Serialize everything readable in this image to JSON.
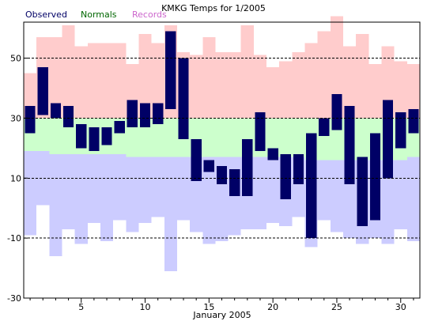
{
  "chart_data": {
    "type": "bar",
    "title": "KMKG Temps for 1/2005",
    "xlabel": "January 2005",
    "ylabel": "",
    "ylim": [
      -30,
      62
    ],
    "xlim": [
      0.5,
      31.5
    ],
    "y_ticks": [
      50,
      30,
      10,
      -10,
      -30
    ],
    "x_ticks": [
      5,
      10,
      15,
      20,
      25,
      30
    ],
    "gridlines": [
      50,
      30,
      10,
      -10
    ],
    "grid": "dashed horizontal",
    "legend": [
      {
        "name": "Observed",
        "color": "#000066"
      },
      {
        "name": "Normals",
        "color": "#006600"
      },
      {
        "name": "Records",
        "color": "#cc66cc"
      }
    ],
    "legend_position": "top-left",
    "colors": {
      "observed": "#000066",
      "normals": "#ccffcc",
      "record_high_band": "#ffcccc",
      "record_low_band": "#ccccff"
    },
    "days": [
      1,
      2,
      3,
      4,
      5,
      6,
      7,
      8,
      9,
      10,
      11,
      12,
      13,
      14,
      15,
      16,
      17,
      18,
      19,
      20,
      21,
      22,
      23,
      24,
      25,
      26,
      27,
      28,
      29,
      30,
      31
    ],
    "record_high": [
      45,
      57,
      57,
      61,
      54,
      55,
      55,
      55,
      48,
      58,
      55,
      61,
      52,
      51,
      57,
      52,
      52,
      61,
      51,
      47,
      49,
      52,
      55,
      59,
      64,
      54,
      58,
      48,
      54,
      49,
      48
    ],
    "normal_high": [
      30,
      30,
      30,
      30,
      30,
      30,
      30,
      30,
      30,
      30,
      30,
      30,
      30,
      30,
      30,
      30,
      30,
      30,
      30,
      30,
      30,
      30,
      30,
      30,
      30,
      30,
      30,
      30,
      30,
      30,
      30
    ],
    "normal_low": [
      19,
      19,
      18,
      18,
      18,
      18,
      18,
      18,
      17,
      17,
      17,
      17,
      17,
      17,
      17,
      17,
      17,
      17,
      17,
      17,
      17,
      17,
      16,
      16,
      16,
      16,
      16,
      16,
      16,
      16,
      17
    ],
    "record_low": [
      -9,
      1,
      -16,
      -7,
      -12,
      -5,
      -11,
      -4,
      -8,
      -5,
      -3,
      -21,
      -4,
      -8,
      -12,
      -11,
      -9,
      -7,
      -7,
      -5,
      -6,
      -3,
      -13,
      -4,
      -8,
      -10,
      -12,
      -10,
      -12,
      -7,
      -11
    ],
    "observed_high": [
      34,
      47,
      35,
      34,
      28,
      27,
      27,
      29,
      36,
      35,
      35,
      59,
      50,
      23,
      16,
      14,
      13,
      23,
      32,
      20,
      18,
      18,
      25,
      30,
      38,
      34,
      17,
      25,
      36,
      32,
      33
    ],
    "observed_low": [
      25,
      31,
      30,
      27,
      20,
      19,
      21,
      25,
      27,
      27,
      28,
      33,
      23,
      9,
      12,
      8,
      4,
      4,
      19,
      16,
      3,
      8,
      -10,
      24,
      26,
      8,
      -6,
      -4,
      10,
      20,
      25
    ]
  }
}
